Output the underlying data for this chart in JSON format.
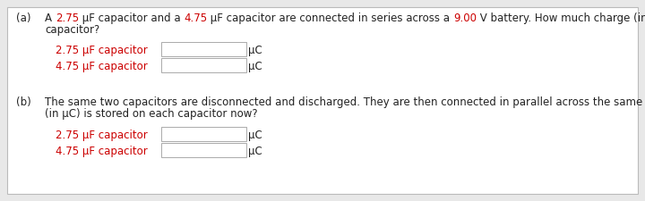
{
  "bg_color": "#e8e8e8",
  "panel_color": "#ffffff",
  "border_color": "#bbbbbb",
  "text_color": "#222222",
  "red_color": "#cc0000",
  "font_size": 8.5,
  "label_a": "(a)",
  "label_b": "(b)",
  "parts_a_line1": [
    [
      "A ",
      "#222222"
    ],
    [
      "2.75",
      "#cc0000"
    ],
    [
      " µF capacitor and a ",
      "#222222"
    ],
    [
      "4.75",
      "#cc0000"
    ],
    [
      " µF capacitor are connected in series across a ",
      "#222222"
    ],
    [
      "9.00",
      "#cc0000"
    ],
    [
      " V battery. How much charge (in µC) is stored on each",
      "#222222"
    ]
  ],
  "line_a2": "capacitor?",
  "cap1_label": "2.75 µF capacitor",
  "cap2_label": "4.75 µF capacitor",
  "unit": "µC",
  "line_b1": "The same two capacitors are disconnected and discharged. They are then connected in parallel across the same battery. How much charge",
  "line_b2": "(in µC) is stored on each capacitor now?"
}
